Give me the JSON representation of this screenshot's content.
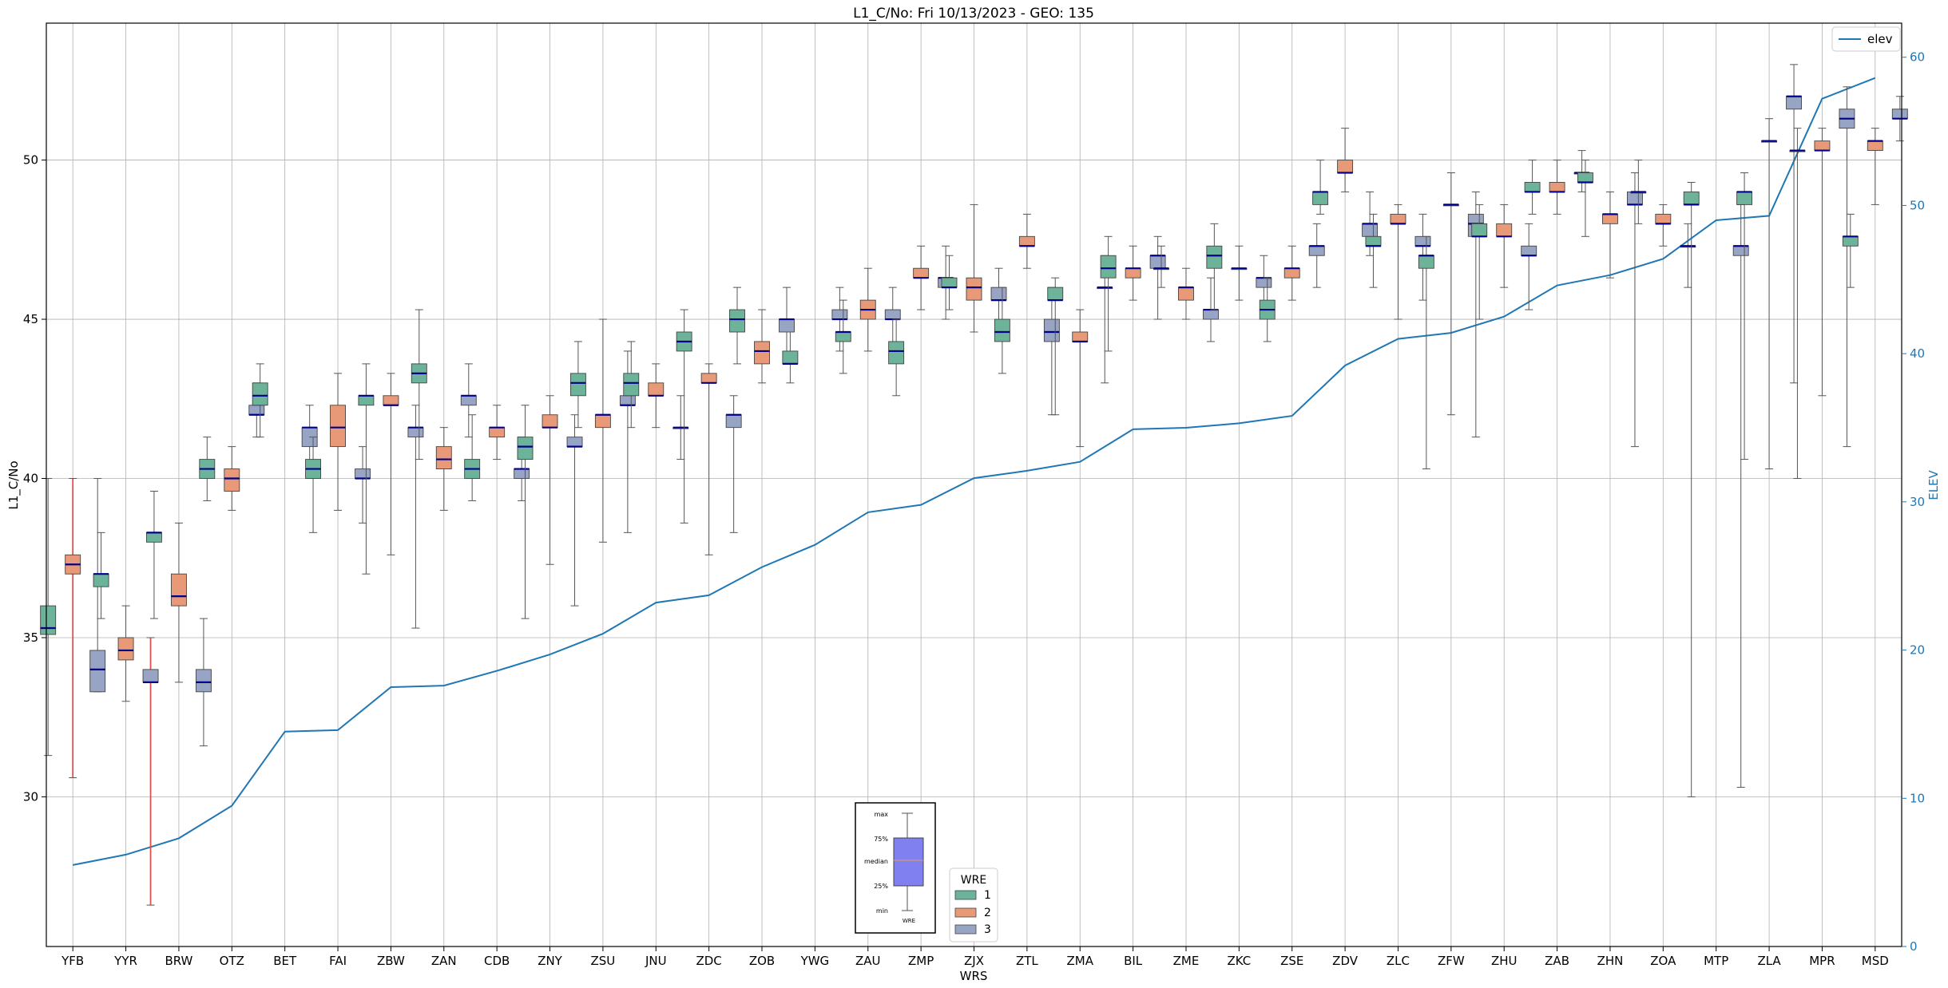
{
  "chart_data": {
    "type": "boxplot",
    "title": "L1_C/No: Fri 10/13/2023 - GEO: 135",
    "xlabel": "WRS",
    "ylabel": "L1_C/No",
    "y2label": "ELEV",
    "ylim": [
      25.3,
      54.3
    ],
    "y2lim": [
      0,
      62.3
    ],
    "yticks": [
      30,
      35,
      40,
      45,
      50
    ],
    "y2ticks": [
      0,
      10,
      20,
      30,
      40,
      50,
      60
    ],
    "grid": true,
    "legend_placement": "top-right",
    "colors": {
      "wre1": "#6db39a",
      "wre2": "#e89a78",
      "wre3": "#97a4c4",
      "median": "#00008b",
      "elev": "#1f77b4",
      "whisker_red": "#e05050"
    },
    "categories": [
      "YFB",
      "YYR",
      "BRW",
      "OTZ",
      "BET",
      "FAI",
      "ZBW",
      "ZAN",
      "CDB",
      "ZNY",
      "ZSU",
      "JNU",
      "ZDC",
      "ZOB",
      "YWG",
      "ZAU",
      "ZMP",
      "ZJX",
      "ZTL",
      "ZMA",
      "BIL",
      "ZME",
      "ZKC",
      "ZSE",
      "ZDV",
      "ZLC",
      "ZFW",
      "ZHU",
      "ZAB",
      "ZHN",
      "ZOA",
      "MTP",
      "ZLA",
      "MPR",
      "MSD"
    ],
    "elev": {
      "name": "elev",
      "values": [
        5.5,
        6.2,
        7.3,
        9.5,
        14.5,
        14.6,
        17.5,
        17.6,
        18.6,
        19.7,
        21.1,
        23.2,
        23.7,
        25.6,
        27.1,
        29.3,
        29.8,
        31.6,
        32.1,
        32.7,
        34.9,
        35.0,
        35.3,
        35.8,
        39.2,
        41.0,
        41.4,
        42.5,
        44.6,
        45.3,
        46.4,
        49.0,
        49.3,
        57.2,
        58.6
      ]
    },
    "wre_legend": {
      "title": "WRE",
      "entries": [
        "1",
        "2",
        "3"
      ]
    },
    "key_labels": {
      "max": "max",
      "q75": "75%",
      "median": "median",
      "q25": "25%",
      "min": "min",
      "wre": "WRE"
    },
    "boxes": [
      {
        "station": "YFB",
        "wre": 1,
        "min": 31.3,
        "q1": 35.1,
        "median": 35.3,
        "q3": 36.0,
        "max": 40.0
      },
      {
        "station": "YFB",
        "wre": 2,
        "min": 30.6,
        "q1": 37.0,
        "median": 37.3,
        "q3": 37.6,
        "max": 40.0,
        "red": true
      },
      {
        "station": "YFB",
        "wre": 3,
        "min": 33.3,
        "q1": 33.3,
        "median": 34.0,
        "q3": 34.6,
        "max": 40.0
      },
      {
        "station": "YYR",
        "wre": 1,
        "min": 35.6,
        "q1": 36.6,
        "median": 37.0,
        "q3": 37.0,
        "max": 38.3
      },
      {
        "station": "YYR",
        "wre": 2,
        "min": 33.0,
        "q1": 34.3,
        "median": 34.6,
        "q3": 35.0,
        "max": 36.0
      },
      {
        "station": "YYR",
        "wre": 3,
        "min": 26.6,
        "q1": 33.6,
        "median": 33.6,
        "q3": 34.0,
        "max": 35.0,
        "red": true
      },
      {
        "station": "BRW",
        "wre": 1,
        "min": 35.6,
        "q1": 38.0,
        "median": 38.3,
        "q3": 38.3,
        "max": 39.6
      },
      {
        "station": "BRW",
        "wre": 2,
        "min": 33.6,
        "q1": 36.0,
        "median": 36.3,
        "q3": 37.0,
        "max": 38.6
      },
      {
        "station": "BRW",
        "wre": 3,
        "min": 31.6,
        "q1": 33.3,
        "median": 33.6,
        "q3": 34.0,
        "max": 35.6
      },
      {
        "station": "OTZ",
        "wre": 1,
        "min": 39.3,
        "q1": 40.0,
        "median": 40.3,
        "q3": 40.6,
        "max": 41.3
      },
      {
        "station": "OTZ",
        "wre": 2,
        "min": 39.0,
        "q1": 39.6,
        "median": 40.0,
        "q3": 40.3,
        "max": 41.0
      },
      {
        "station": "OTZ",
        "wre": 3,
        "min": 41.3,
        "q1": 42.0,
        "median": 42.0,
        "q3": 42.3,
        "max": 43.0
      },
      {
        "station": "BET",
        "wre": 1,
        "min": 41.3,
        "q1": 42.3,
        "median": 42.6,
        "q3": 43.0,
        "max": 43.6
      },
      {
        "station": "BET",
        "wre": 3,
        "min": 40.0,
        "q1": 41.0,
        "median": 41.6,
        "q3": 41.6,
        "max": 42.3
      },
      {
        "station": "FAI",
        "wre": 1,
        "min": 38.3,
        "q1": 40.0,
        "median": 40.3,
        "q3": 40.6,
        "max": 41.3
      },
      {
        "station": "FAI",
        "wre": 2,
        "min": 39.0,
        "q1": 41.0,
        "median": 41.6,
        "q3": 42.3,
        "max": 43.3
      },
      {
        "station": "FAI",
        "wre": 3,
        "min": 38.6,
        "q1": 40.0,
        "median": 40.0,
        "q3": 40.3,
        "max": 41.0
      },
      {
        "station": "ZBW",
        "wre": 1,
        "min": 37.0,
        "q1": 42.3,
        "median": 42.6,
        "q3": 42.6,
        "max": 43.6
      },
      {
        "station": "ZBW",
        "wre": 2,
        "min": 37.6,
        "q1": 42.3,
        "median": 42.3,
        "q3": 42.6,
        "max": 43.3
      },
      {
        "station": "ZBW",
        "wre": 3,
        "min": 35.3,
        "q1": 41.3,
        "median": 41.6,
        "q3": 41.6,
        "max": 42.3
      },
      {
        "station": "ZAN",
        "wre": 1,
        "min": 40.6,
        "q1": 43.0,
        "median": 43.3,
        "q3": 43.6,
        "max": 45.3
      },
      {
        "station": "ZAN",
        "wre": 2,
        "min": 39.0,
        "q1": 40.3,
        "median": 40.6,
        "q3": 41.0,
        "max": 41.6
      },
      {
        "station": "ZAN",
        "wre": 3,
        "min": 41.3,
        "q1": 42.3,
        "median": 42.6,
        "q3": 42.6,
        "max": 43.6
      },
      {
        "station": "CDB",
        "wre": 1,
        "min": 39.3,
        "q1": 40.0,
        "median": 40.3,
        "q3": 40.6,
        "max": 42.0
      },
      {
        "station": "CDB",
        "wre": 2,
        "min": 40.6,
        "q1": 41.3,
        "median": 41.6,
        "q3": 41.6,
        "max": 42.3
      },
      {
        "station": "CDB",
        "wre": 3,
        "min": 39.3,
        "q1": 40.0,
        "median": 40.3,
        "q3": 40.3,
        "max": 41.3
      },
      {
        "station": "ZNY",
        "wre": 1,
        "min": 35.6,
        "q1": 40.6,
        "median": 41.0,
        "q3": 41.3,
        "max": 42.3
      },
      {
        "station": "ZNY",
        "wre": 2,
        "min": 37.3,
        "q1": 41.6,
        "median": 41.6,
        "q3": 42.0,
        "max": 42.6
      },
      {
        "station": "ZNY",
        "wre": 3,
        "min": 36.0,
        "q1": 41.0,
        "median": 41.0,
        "q3": 41.3,
        "max": 42.0
      },
      {
        "station": "ZSU",
        "wre": 1,
        "min": 41.6,
        "q1": 42.6,
        "median": 43.0,
        "q3": 43.3,
        "max": 44.3
      },
      {
        "station": "ZSU",
        "wre": 2,
        "min": 38.0,
        "q1": 41.6,
        "median": 42.0,
        "q3": 42.0,
        "max": 45.0
      },
      {
        "station": "ZSU",
        "wre": 3,
        "min": 38.3,
        "q1": 42.3,
        "median": 42.3,
        "q3": 42.6,
        "max": 44.0
      },
      {
        "station": "JNU",
        "wre": 1,
        "min": 41.6,
        "q1": 42.6,
        "median": 43.0,
        "q3": 43.3,
        "max": 44.3
      },
      {
        "station": "JNU",
        "wre": 2,
        "min": 41.6,
        "q1": 42.6,
        "median": 42.6,
        "q3": 43.0,
        "max": 43.6
      },
      {
        "station": "JNU",
        "wre": 3,
        "min": 40.6,
        "q1": 41.6,
        "median": 41.6,
        "q3": 41.6,
        "max": 42.6
      },
      {
        "station": "ZDC",
        "wre": 1,
        "min": 38.6,
        "q1": 44.0,
        "median": 44.3,
        "q3": 44.6,
        "max": 45.3
      },
      {
        "station": "ZDC",
        "wre": 2,
        "min": 37.6,
        "q1": 43.0,
        "median": 43.0,
        "q3": 43.3,
        "max": 43.6
      },
      {
        "station": "ZDC",
        "wre": 3,
        "min": 38.3,
        "q1": 41.6,
        "median": 42.0,
        "q3": 42.0,
        "max": 42.6
      },
      {
        "station": "ZOB",
        "wre": 1,
        "min": 43.6,
        "q1": 44.6,
        "median": 45.0,
        "q3": 45.3,
        "max": 46.0
      },
      {
        "station": "ZOB",
        "wre": 2,
        "min": 43.0,
        "q1": 43.6,
        "median": 44.0,
        "q3": 44.3,
        "max": 45.3
      },
      {
        "station": "ZOB",
        "wre": 3,
        "min": 43.6,
        "q1": 44.6,
        "median": 45.0,
        "q3": 45.0,
        "max": 46.0
      },
      {
        "station": "YWG",
        "wre": 1,
        "min": 43.0,
        "q1": 43.6,
        "median": 43.6,
        "q3": 44.0,
        "max": 44.6
      },
      {
        "station": "YWG",
        "wre": 3,
        "min": 44.0,
        "q1": 45.0,
        "median": 45.0,
        "q3": 45.3,
        "max": 46.0
      },
      {
        "station": "ZAU",
        "wre": 1,
        "min": 43.3,
        "q1": 44.3,
        "median": 44.6,
        "q3": 44.6,
        "max": 45.6
      },
      {
        "station": "ZAU",
        "wre": 2,
        "min": 44.0,
        "q1": 45.0,
        "median": 45.3,
        "q3": 45.6,
        "max": 46.6
      },
      {
        "station": "ZAU",
        "wre": 3,
        "min": 44.0,
        "q1": 45.0,
        "median": 45.0,
        "q3": 45.3,
        "max": 46.0
      },
      {
        "station": "ZMP",
        "wre": 1,
        "min": 42.6,
        "q1": 43.6,
        "median": 44.0,
        "q3": 44.3,
        "max": 45.0
      },
      {
        "station": "ZMP",
        "wre": 2,
        "min": 45.3,
        "q1": 46.3,
        "median": 46.3,
        "q3": 46.6,
        "max": 47.3
      },
      {
        "station": "ZMP",
        "wre": 3,
        "min": 45.0,
        "q1": 46.0,
        "median": 46.3,
        "q3": 46.3,
        "max": 47.3
      },
      {
        "station": "ZJX",
        "wre": 1,
        "min": 45.3,
        "q1": 46.0,
        "median": 46.0,
        "q3": 46.3,
        "max": 47.0
      },
      {
        "station": "ZJX",
        "wre": 2,
        "min": 44.6,
        "q1": 45.6,
        "median": 46.0,
        "q3": 46.3,
        "max": 48.6
      },
      {
        "station": "ZJX",
        "wre": 3,
        "min": 44.6,
        "q1": 45.6,
        "median": 45.6,
        "q3": 46.0,
        "max": 46.6
      },
      {
        "station": "ZTL",
        "wre": 1,
        "min": 43.3,
        "q1": 44.3,
        "median": 44.6,
        "q3": 45.0,
        "max": 46.0
      },
      {
        "station": "ZTL",
        "wre": 2,
        "min": 46.6,
        "q1": 47.3,
        "median": 47.3,
        "q3": 47.6,
        "max": 48.3
      },
      {
        "station": "ZTL",
        "wre": 3,
        "min": 42.0,
        "q1": 44.3,
        "median": 44.6,
        "q3": 45.0,
        "max": 46.0
      },
      {
        "station": "ZMA",
        "wre": 1,
        "min": 42.0,
        "q1": 45.6,
        "median": 45.6,
        "q3": 46.0,
        "max": 46.3
      },
      {
        "station": "ZMA",
        "wre": 2,
        "min": 41.0,
        "q1": 44.3,
        "median": 44.3,
        "q3": 44.6,
        "max": 45.3
      },
      {
        "station": "ZMA",
        "wre": 3,
        "min": 43.0,
        "q1": 46.0,
        "median": 46.0,
        "q3": 46.0,
        "max": 47.0
      },
      {
        "station": "BIL",
        "wre": 1,
        "min": 44.0,
        "q1": 46.3,
        "median": 46.6,
        "q3": 47.0,
        "max": 47.6
      },
      {
        "station": "BIL",
        "wre": 2,
        "min": 45.6,
        "q1": 46.3,
        "median": 46.6,
        "q3": 46.6,
        "max": 47.3
      },
      {
        "station": "BIL",
        "wre": 3,
        "min": 45.0,
        "q1": 46.6,
        "median": 47.0,
        "q3": 47.0,
        "max": 47.6
      },
      {
        "station": "ZME",
        "wre": 1,
        "min": 46.0,
        "q1": 46.6,
        "median": 46.6,
        "q3": 46.6,
        "max": 47.3
      },
      {
        "station": "ZME",
        "wre": 2,
        "min": 45.0,
        "q1": 45.6,
        "median": 46.0,
        "q3": 46.0,
        "max": 46.6
      },
      {
        "station": "ZME",
        "wre": 3,
        "min": 44.3,
        "q1": 45.0,
        "median": 45.3,
        "q3": 45.3,
        "max": 46.3
      },
      {
        "station": "ZKC",
        "wre": 1,
        "min": 45.3,
        "q1": 46.6,
        "median": 47.0,
        "q3": 47.3,
        "max": 48.0
      },
      {
        "station": "ZKC",
        "wre": 2,
        "min": 45.6,
        "q1": 46.6,
        "median": 46.6,
        "q3": 46.6,
        "max": 47.3
      },
      {
        "station": "ZKC",
        "wre": 3,
        "min": 45.3,
        "q1": 46.0,
        "median": 46.3,
        "q3": 46.3,
        "max": 47.0
      },
      {
        "station": "ZSE",
        "wre": 1,
        "min": 44.3,
        "q1": 45.0,
        "median": 45.3,
        "q3": 45.6,
        "max": 46.3
      },
      {
        "station": "ZSE",
        "wre": 2,
        "min": 45.6,
        "q1": 46.3,
        "median": 46.6,
        "q3": 46.6,
        "max": 47.3
      },
      {
        "station": "ZSE",
        "wre": 3,
        "min": 46.0,
        "q1": 47.0,
        "median": 47.3,
        "q3": 47.3,
        "max": 48.0
      },
      {
        "station": "ZDV",
        "wre": 1,
        "min": 48.3,
        "q1": 48.6,
        "median": 49.0,
        "q3": 49.0,
        "max": 50.0
      },
      {
        "station": "ZDV",
        "wre": 2,
        "min": 49.0,
        "q1": 49.6,
        "median": 49.6,
        "q3": 50.0,
        "max": 51.0
      },
      {
        "station": "ZDV",
        "wre": 3,
        "min": 47.0,
        "q1": 47.6,
        "median": 48.0,
        "q3": 48.0,
        "max": 49.0
      },
      {
        "station": "ZLC",
        "wre": 1,
        "min": 46.0,
        "q1": 47.3,
        "median": 47.3,
        "q3": 47.6,
        "max": 48.3
      },
      {
        "station": "ZLC",
        "wre": 2,
        "min": 45.0,
        "q1": 48.0,
        "median": 48.0,
        "q3": 48.3,
        "max": 48.6
      },
      {
        "station": "ZLC",
        "wre": 3,
        "min": 45.6,
        "q1": 47.3,
        "median": 47.3,
        "q3": 47.6,
        "max": 48.3
      },
      {
        "station": "ZFW",
        "wre": 1,
        "min": 40.3,
        "q1": 46.6,
        "median": 47.0,
        "q3": 47.0,
        "max": 47.6
      },
      {
        "station": "ZFW",
        "wre": 2,
        "min": 42.0,
        "q1": 48.6,
        "median": 48.6,
        "q3": 48.6,
        "max": 49.6
      },
      {
        "station": "ZFW",
        "wre": 3,
        "min": 41.3,
        "q1": 47.6,
        "median": 48.0,
        "q3": 48.3,
        "max": 49.0
      },
      {
        "station": "ZHU",
        "wre": 1,
        "min": 45.0,
        "q1": 47.6,
        "median": 47.6,
        "q3": 48.0,
        "max": 48.6
      },
      {
        "station": "ZHU",
        "wre": 2,
        "min": 46.0,
        "q1": 47.6,
        "median": 47.6,
        "q3": 48.0,
        "max": 48.6
      },
      {
        "station": "ZHU",
        "wre": 3,
        "min": 45.3,
        "q1": 47.0,
        "median": 47.0,
        "q3": 47.3,
        "max": 48.0
      },
      {
        "station": "ZAB",
        "wre": 1,
        "min": 48.3,
        "q1": 49.0,
        "median": 49.0,
        "q3": 49.3,
        "max": 50.0
      },
      {
        "station": "ZAB",
        "wre": 2,
        "min": 48.3,
        "q1": 49.0,
        "median": 49.0,
        "q3": 49.3,
        "max": 50.0
      },
      {
        "station": "ZAB",
        "wre": 3,
        "min": 49.0,
        "q1": 49.6,
        "median": 49.6,
        "q3": 49.6,
        "max": 50.3
      },
      {
        "station": "ZHN",
        "wre": 1,
        "min": 47.6,
        "q1": 49.3,
        "median": 49.3,
        "q3": 49.6,
        "max": 50.0
      },
      {
        "station": "ZHN",
        "wre": 2,
        "min": 46.3,
        "q1": 48.0,
        "median": 48.3,
        "q3": 48.3,
        "max": 49.0
      },
      {
        "station": "ZHN",
        "wre": 3,
        "min": 41.0,
        "q1": 48.6,
        "median": 48.6,
        "q3": 49.0,
        "max": 49.6
      },
      {
        "station": "ZOA",
        "wre": 1,
        "min": 48.0,
        "q1": 49.0,
        "median": 49.0,
        "q3": 49.0,
        "max": 50.0
      },
      {
        "station": "ZOA",
        "wre": 2,
        "min": 47.3,
        "q1": 48.0,
        "median": 48.0,
        "q3": 48.3,
        "max": 48.6
      },
      {
        "station": "ZOA",
        "wre": 3,
        "min": 46.0,
        "q1": 47.3,
        "median": 47.3,
        "q3": 47.3,
        "max": 48.0
      },
      {
        "station": "MTP",
        "wre": 1,
        "min": 30.0,
        "q1": 48.6,
        "median": 48.6,
        "q3": 49.0,
        "max": 49.3
      },
      {
        "station": "MTP",
        "wre": 3,
        "min": 30.3,
        "q1": 47.0,
        "median": 47.3,
        "q3": 47.3,
        "max": 48.6
      },
      {
        "station": "ZLA",
        "wre": 1,
        "min": 40.6,
        "q1": 48.6,
        "median": 49.0,
        "q3": 49.0,
        "max": 49.6
      },
      {
        "station": "ZLA",
        "wre": 2,
        "min": 40.3,
        "q1": 50.6,
        "median": 50.6,
        "q3": 50.6,
        "max": 51.3
      },
      {
        "station": "ZLA",
        "wre": 3,
        "min": 43.0,
        "q1": 51.6,
        "median": 52.0,
        "q3": 52.0,
        "max": 53.0
      },
      {
        "station": "MPR",
        "wre": 1,
        "min": 40.0,
        "q1": 50.3,
        "median": 50.3,
        "q3": 50.3,
        "max": 51.0
      },
      {
        "station": "MPR",
        "wre": 2,
        "min": 42.6,
        "q1": 50.3,
        "median": 50.3,
        "q3": 50.6,
        "max": 51.0
      },
      {
        "station": "MPR",
        "wre": 3,
        "min": 41.0,
        "q1": 51.0,
        "median": 51.3,
        "q3": 51.6,
        "max": 52.3
      },
      {
        "station": "MSD",
        "wre": 1,
        "min": 46.0,
        "q1": 47.3,
        "median": 47.6,
        "q3": 47.6,
        "max": 48.3
      },
      {
        "station": "MSD",
        "wre": 2,
        "min": 48.6,
        "q1": 50.3,
        "median": 50.6,
        "q3": 50.6,
        "max": 51.0
      },
      {
        "station": "MSD",
        "wre": 3,
        "min": 50.6,
        "q1": 51.3,
        "median": 51.3,
        "q3": 51.6,
        "max": 52.0
      }
    ]
  }
}
